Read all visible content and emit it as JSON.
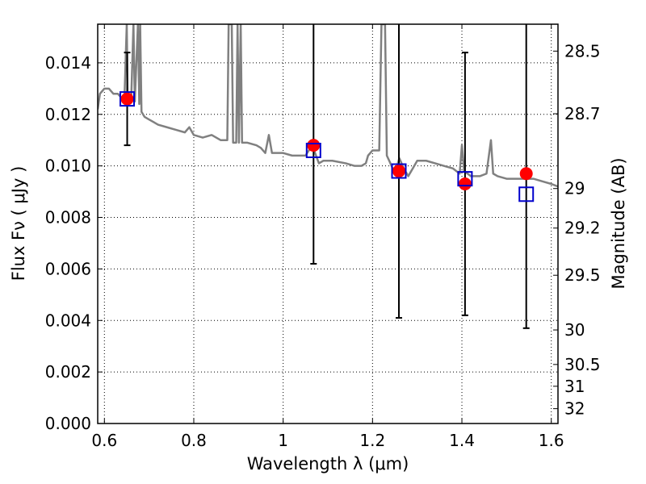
{
  "chart_data": {
    "type": "scatter",
    "xlabel": "Wavelength  λ (μm)",
    "ylabel": "Flux  Fν  ( μJy )",
    "y2label": "Magnitude (AB)",
    "xlim": [
      0.585,
      1.615
    ],
    "ylim": [
      0.0,
      0.0155
    ],
    "grid": true,
    "x_ticks": [
      0.6,
      0.8,
      1.0,
      1.2,
      1.4,
      1.6
    ],
    "x_tick_labels": [
      "0.6",
      "0.8",
      "1",
      "1.2",
      "1.4",
      "1.6"
    ],
    "y_ticks": [
      0.0,
      0.002,
      0.004,
      0.006,
      0.008,
      0.01,
      0.012,
      0.014
    ],
    "y_tick_labels": [
      "0.000",
      "0.002",
      "0.004",
      "0.006",
      "0.008",
      "0.010",
      "0.012",
      "0.014"
    ],
    "y2_ticks": [
      28.5,
      28.7,
      29,
      29.2,
      29.5,
      30,
      30.5,
      31,
      32
    ],
    "y2_tick_labels": [
      "28.5",
      "28.7",
      "29",
      "29.2",
      "29.5",
      "30",
      "30.5",
      "31",
      "32"
    ],
    "y2_zero_point_ujy": 3631000000,
    "colors": {
      "spectrum": "#808080",
      "observed": "#ff0000",
      "model": "#0000cc",
      "errorbar": "#000000",
      "grid": "#000000"
    },
    "observed_points": [
      {
        "x": 0.651,
        "y": 0.0126,
        "yerr_low": 0.0108,
        "yerr_high": 0.0144
      },
      {
        "x": 1.068,
        "y": 0.0108,
        "yerr_low": 0.0062,
        "yerr_high": 0.0155
      },
      {
        "x": 1.259,
        "y": 0.0098,
        "yerr_low": 0.0041,
        "yerr_high": 0.0155
      },
      {
        "x": 1.407,
        "y": 0.0093,
        "yerr_low": 0.0042,
        "yerr_high": 0.0144
      },
      {
        "x": 1.544,
        "y": 0.0097,
        "yerr_low": 0.0037,
        "yerr_high": 0.0155
      }
    ],
    "model_points": [
      {
        "x": 0.651,
        "y": 0.0126
      },
      {
        "x": 1.068,
        "y": 0.0106
      },
      {
        "x": 1.259,
        "y": 0.0098
      },
      {
        "x": 1.407,
        "y": 0.0095
      },
      {
        "x": 1.544,
        "y": 0.0089
      }
    ],
    "spectrum": [
      [
        0.585,
        0.0122
      ],
      [
        0.59,
        0.0128
      ],
      [
        0.6,
        0.013
      ],
      [
        0.61,
        0.013
      ],
      [
        0.62,
        0.0128
      ],
      [
        0.63,
        0.0128
      ],
      [
        0.64,
        0.0126
      ],
      [
        0.645,
        0.0127
      ],
      [
        0.65,
        0.0155
      ],
      [
        0.652,
        0.0127
      ],
      [
        0.66,
        0.0126
      ],
      [
        0.665,
        0.0155
      ],
      [
        0.668,
        0.0125
      ],
      [
        0.675,
        0.0155
      ],
      [
        0.678,
        0.0124
      ],
      [
        0.68,
        0.0155
      ],
      [
        0.683,
        0.0121
      ],
      [
        0.69,
        0.0119
      ],
      [
        0.7,
        0.0118
      ],
      [
        0.71,
        0.0117
      ],
      [
        0.72,
        0.0116
      ],
      [
        0.74,
        0.0115
      ],
      [
        0.76,
        0.0114
      ],
      [
        0.78,
        0.0113
      ],
      [
        0.79,
        0.0115
      ],
      [
        0.8,
        0.0112
      ],
      [
        0.82,
        0.0111
      ],
      [
        0.84,
        0.0112
      ],
      [
        0.86,
        0.011
      ],
      [
        0.875,
        0.011
      ],
      [
        0.878,
        0.0155
      ],
      [
        0.885,
        0.0155
      ],
      [
        0.888,
        0.0109
      ],
      [
        0.895,
        0.0109
      ],
      [
        0.898,
        0.0155
      ],
      [
        0.901,
        0.0109
      ],
      [
        0.905,
        0.0155
      ],
      [
        0.908,
        0.0109
      ],
      [
        0.92,
        0.0109
      ],
      [
        0.94,
        0.0108
      ],
      [
        0.95,
        0.0107
      ],
      [
        0.96,
        0.0105
      ],
      [
        0.968,
        0.0112
      ],
      [
        0.975,
        0.0105
      ],
      [
        1.0,
        0.0105
      ],
      [
        1.02,
        0.0104
      ],
      [
        1.05,
        0.0104
      ],
      [
        1.065,
        0.0108
      ],
      [
        1.08,
        0.0101
      ],
      [
        1.09,
        0.0102
      ],
      [
        1.11,
        0.0102
      ],
      [
        1.14,
        0.0101
      ],
      [
        1.16,
        0.01
      ],
      [
        1.175,
        0.01
      ],
      [
        1.185,
        0.0101
      ],
      [
        1.19,
        0.0104
      ],
      [
        1.2,
        0.0106
      ],
      [
        1.215,
        0.0106
      ],
      [
        1.22,
        0.0155
      ],
      [
        1.228,
        0.0155
      ],
      [
        1.232,
        0.0104
      ],
      [
        1.24,
        0.0101
      ],
      [
        1.25,
        0.0097
      ],
      [
        1.26,
        0.0103
      ],
      [
        1.27,
        0.0099
      ],
      [
        1.28,
        0.0096
      ],
      [
        1.29,
        0.0099
      ],
      [
        1.3,
        0.0102
      ],
      [
        1.32,
        0.0102
      ],
      [
        1.34,
        0.0101
      ],
      [
        1.36,
        0.01
      ],
      [
        1.38,
        0.0099
      ],
      [
        1.395,
        0.0097
      ],
      [
        1.4,
        0.0108
      ],
      [
        1.405,
        0.0098
      ],
      [
        1.42,
        0.0096
      ],
      [
        1.44,
        0.0096
      ],
      [
        1.455,
        0.0097
      ],
      [
        1.465,
        0.011
      ],
      [
        1.47,
        0.0097
      ],
      [
        1.48,
        0.0096
      ],
      [
        1.5,
        0.0095
      ],
      [
        1.52,
        0.0095
      ],
      [
        1.54,
        0.0095
      ],
      [
        1.56,
        0.0095
      ],
      [
        1.58,
        0.0094
      ],
      [
        1.6,
        0.0093
      ],
      [
        1.615,
        0.0092
      ]
    ]
  }
}
